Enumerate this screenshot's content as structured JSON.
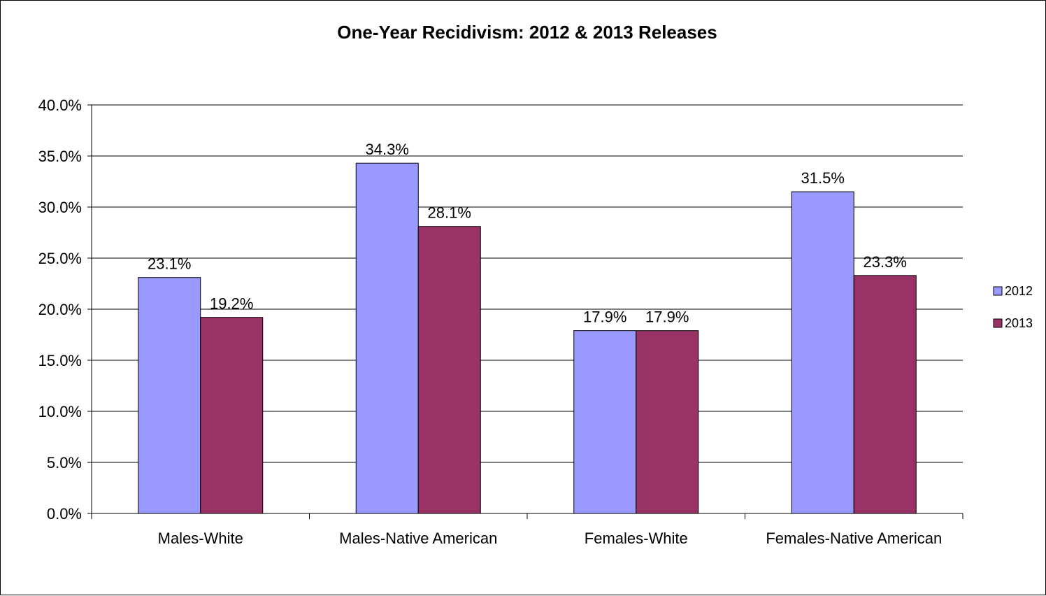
{
  "chart_data": {
    "type": "bar",
    "title": "One-Year Recidivism: 2012 & 2013 Releases",
    "xlabel": "",
    "ylabel": "",
    "categories": [
      "Males-White",
      "Males-Native American",
      "Females-White",
      "Females-Native American"
    ],
    "series": [
      {
        "name": "2012",
        "values": [
          23.1,
          34.3,
          17.9,
          31.5
        ],
        "color": "#9999ff"
      },
      {
        "name": "2013",
        "values": [
          19.2,
          28.1,
          17.9,
          23.3
        ],
        "color": "#993366"
      }
    ],
    "ylim": [
      0,
      40
    ],
    "yticks": [
      0,
      5,
      10,
      15,
      20,
      25,
      30,
      35,
      40
    ],
    "ytick_labels": [
      "0.0%",
      "5.0%",
      "10.0%",
      "15.0%",
      "20.0%",
      "25.0%",
      "30.0%",
      "35.0%",
      "40.0%"
    ],
    "data_labels": [
      [
        "23.1%",
        "34.3%",
        "17.9%",
        "31.5%"
      ],
      [
        "19.2%",
        "28.1%",
        "17.9%",
        "23.3%"
      ]
    ],
    "grid": true,
    "legend": "right"
  }
}
